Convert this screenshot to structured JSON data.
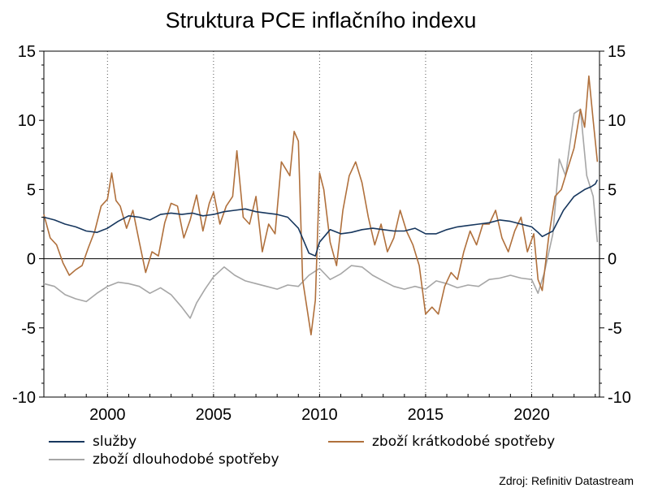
{
  "chart_data": {
    "type": "line",
    "title": "Struktura PCE inflačního indexu",
    "source": "Zdroj: Refinitiv Datastream",
    "xlim": [
      1997.0,
      2023.2
    ],
    "ylim": [
      -10,
      15
    ],
    "x_ticks": [
      2000,
      2005,
      2010,
      2015,
      2020
    ],
    "y_ticks": [
      -10,
      -5,
      0,
      5,
      10,
      15
    ],
    "y_tick_labels": [
      "-10",
      "-5",
      "0",
      "5",
      "10",
      "15"
    ],
    "vertical_grid": true,
    "horizontal_grid": false,
    "legend_position": "bottom",
    "series": [
      {
        "name": "služby",
        "color": "#17375e",
        "x": [
          1997.0,
          1997.5,
          1998.0,
          1998.5,
          1999.0,
          1999.5,
          2000.0,
          2000.5,
          2001.0,
          2001.5,
          2002.0,
          2002.5,
          2003.0,
          2003.5,
          2004.0,
          2004.5,
          2005.0,
          2005.5,
          2006.0,
          2006.5,
          2007.0,
          2007.5,
          2008.0,
          2008.5,
          2009.0,
          2009.5,
          2009.8,
          2010.0,
          2010.5,
          2011.0,
          2011.5,
          2012.0,
          2012.5,
          2013.0,
          2013.5,
          2014.0,
          2014.5,
          2015.0,
          2015.5,
          2016.0,
          2016.5,
          2017.0,
          2017.5,
          2018.0,
          2018.5,
          2019.0,
          2019.5,
          2020.0,
          2020.3,
          2020.5,
          2021.0,
          2021.5,
          2022.0,
          2022.5,
          2022.8,
          2023.0,
          2023.1
        ],
        "y": [
          3.0,
          2.8,
          2.5,
          2.3,
          2.0,
          1.9,
          2.2,
          2.7,
          3.1,
          3.0,
          2.8,
          3.2,
          3.3,
          3.2,
          3.3,
          3.1,
          3.2,
          3.4,
          3.5,
          3.6,
          3.4,
          3.3,
          3.2,
          3.0,
          2.2,
          0.4,
          0.2,
          1.2,
          2.1,
          1.8,
          1.9,
          2.1,
          2.2,
          2.1,
          2.0,
          2.0,
          2.2,
          1.8,
          1.8,
          2.1,
          2.3,
          2.4,
          2.5,
          2.6,
          2.8,
          2.7,
          2.5,
          2.3,
          1.9,
          1.6,
          2.0,
          3.5,
          4.5,
          5.0,
          5.2,
          5.4,
          5.7
        ]
      },
      {
        "name": "zboží krátkodobé spotřeby",
        "color": "#b0703c",
        "x": [
          1997.0,
          1997.3,
          1997.6,
          1997.9,
          1998.2,
          1998.5,
          1998.8,
          1999.1,
          1999.4,
          1999.7,
          2000.0,
          2000.2,
          2000.4,
          2000.6,
          2000.9,
          2001.2,
          2001.5,
          2001.8,
          2002.1,
          2002.4,
          2002.7,
          2003.0,
          2003.3,
          2003.6,
          2003.9,
          2004.2,
          2004.5,
          2004.8,
          2005.0,
          2005.3,
          2005.6,
          2005.9,
          2006.1,
          2006.4,
          2006.7,
          2007.0,
          2007.3,
          2007.6,
          2007.9,
          2008.2,
          2008.4,
          2008.6,
          2008.8,
          2009.0,
          2009.2,
          2009.4,
          2009.6,
          2009.8,
          2010.0,
          2010.2,
          2010.5,
          2010.8,
          2011.1,
          2011.4,
          2011.7,
          2012.0,
          2012.3,
          2012.6,
          2012.9,
          2013.2,
          2013.5,
          2013.8,
          2014.1,
          2014.4,
          2014.7,
          2015.0,
          2015.3,
          2015.6,
          2015.9,
          2016.2,
          2016.5,
          2016.8,
          2017.1,
          2017.4,
          2017.7,
          2018.0,
          2018.3,
          2018.6,
          2018.9,
          2019.2,
          2019.5,
          2019.8,
          2020.1,
          2020.3,
          2020.5,
          2020.8,
          2021.1,
          2021.4,
          2021.7,
          2022.0,
          2022.3,
          2022.5,
          2022.7,
          2022.9,
          2023.1
        ],
        "y": [
          3.2,
          1.5,
          1.0,
          -0.3,
          -1.2,
          -0.8,
          -0.5,
          0.8,
          2.0,
          3.8,
          4.3,
          6.2,
          4.2,
          3.8,
          2.2,
          3.5,
          1.2,
          -1.0,
          0.5,
          0.2,
          2.6,
          4.0,
          3.8,
          1.5,
          2.8,
          4.6,
          2.0,
          4.0,
          4.8,
          2.5,
          3.8,
          4.5,
          7.8,
          3.0,
          2.5,
          4.5,
          0.5,
          2.5,
          1.8,
          7.0,
          6.5,
          6.0,
          9.2,
          8.5,
          -1.5,
          -3.5,
          -5.5,
          -3.0,
          6.2,
          5.0,
          1.2,
          -0.5,
          3.5,
          6.0,
          7.0,
          5.5,
          3.0,
          1.0,
          2.5,
          0.5,
          1.5,
          3.5,
          2.0,
          1.0,
          -0.5,
          -4.0,
          -3.5,
          -4.0,
          -2.0,
          -1.0,
          -1.5,
          0.5,
          2.0,
          1.0,
          2.5,
          2.5,
          3.5,
          1.5,
          0.5,
          2.0,
          3.0,
          0.5,
          1.8,
          -1.5,
          -2.3,
          1.5,
          4.5,
          5.0,
          6.5,
          8.0,
          10.8,
          9.5,
          13.2,
          10.0,
          7.0
        ]
      },
      {
        "name": "zboží dlouhodobé spotřeby",
        "color": "#a6a6a6",
        "x": [
          1997.0,
          1997.5,
          1998.0,
          1998.5,
          1999.0,
          1999.5,
          2000.0,
          2000.5,
          2001.0,
          2001.5,
          2002.0,
          2002.5,
          2003.0,
          2003.5,
          2003.9,
          2004.2,
          2004.6,
          2005.0,
          2005.5,
          2006.0,
          2006.5,
          2007.0,
          2007.5,
          2008.0,
          2008.5,
          2009.0,
          2009.5,
          2010.0,
          2010.5,
          2011.0,
          2011.5,
          2012.0,
          2012.5,
          2013.0,
          2013.5,
          2014.0,
          2014.5,
          2015.0,
          2015.5,
          2016.0,
          2016.5,
          2017.0,
          2017.5,
          2018.0,
          2018.5,
          2019.0,
          2019.5,
          2020.0,
          2020.3,
          2020.6,
          2021.0,
          2021.3,
          2021.6,
          2022.0,
          2022.3,
          2022.6,
          2022.9,
          2023.1
        ],
        "y": [
          -1.8,
          -2.0,
          -2.6,
          -2.9,
          -3.1,
          -2.5,
          -2.0,
          -1.7,
          -1.8,
          -2.0,
          -2.5,
          -2.1,
          -2.6,
          -3.5,
          -4.3,
          -3.2,
          -2.2,
          -1.3,
          -0.6,
          -1.2,
          -1.6,
          -1.8,
          -2.0,
          -2.2,
          -1.9,
          -2.0,
          -1.2,
          -0.7,
          -1.5,
          -1.1,
          -0.5,
          -0.6,
          -1.2,
          -1.6,
          -2.0,
          -2.2,
          -2.0,
          -2.2,
          -1.6,
          -1.8,
          -2.1,
          -1.9,
          -2.0,
          -1.5,
          -1.4,
          -1.2,
          -1.4,
          -1.5,
          -2.5,
          -1.0,
          1.8,
          7.2,
          6.0,
          10.5,
          10.8,
          6.0,
          4.5,
          1.2
        ]
      }
    ]
  }
}
